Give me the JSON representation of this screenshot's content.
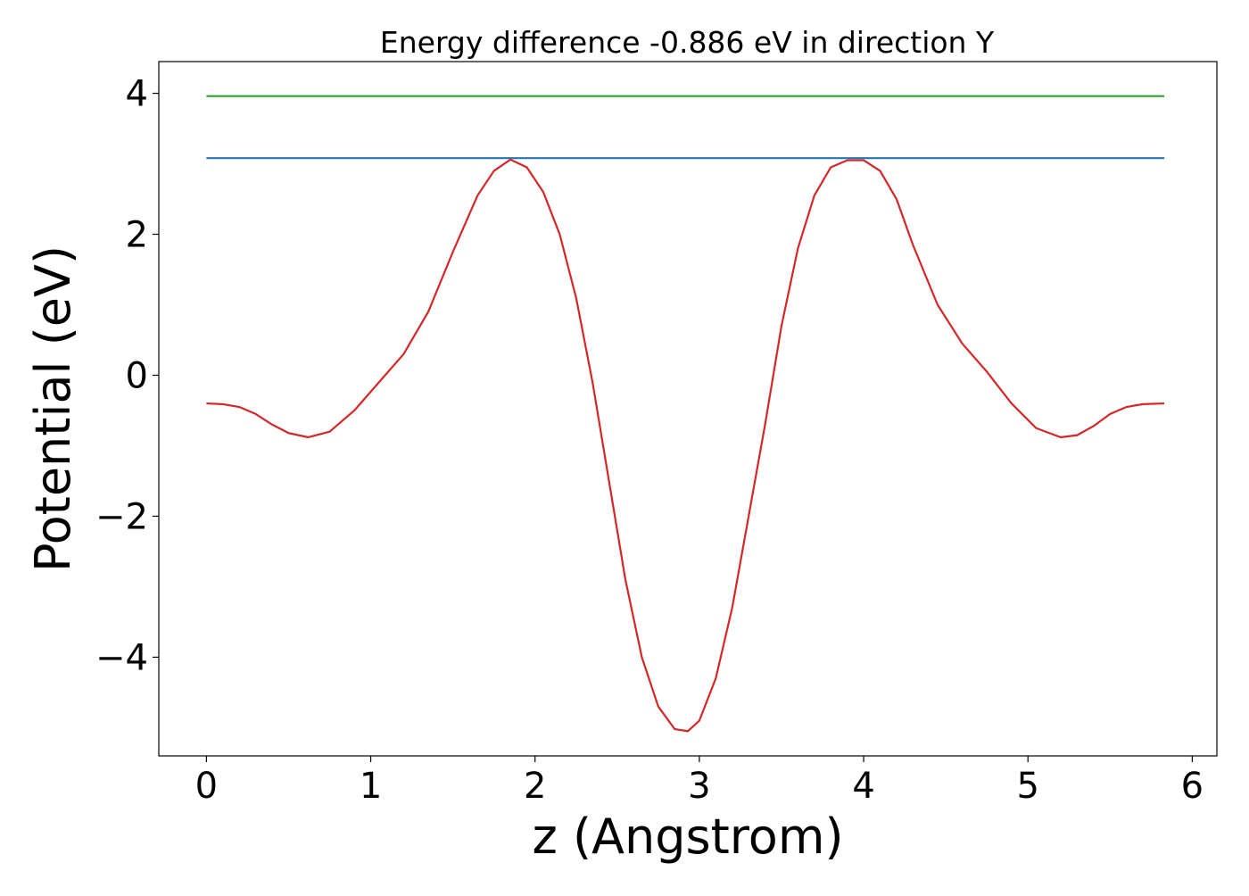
{
  "chart_data": {
    "type": "line",
    "title": "Energy difference -0.886 eV in direction Y",
    "xlabel": "z (Angstrom)",
    "ylabel": "Potential (eV)",
    "xlim": [
      -0.29,
      6.15
    ],
    "ylim": [
      -5.4,
      4.45
    ],
    "xticks": [
      0,
      1,
      2,
      3,
      4,
      5,
      6
    ],
    "xtick_labels": [
      "0",
      "1",
      "2",
      "3",
      "4",
      "5",
      "6"
    ],
    "yticks": [
      -4,
      -2,
      0,
      2,
      4
    ],
    "ytick_labels": [
      "−4",
      "−2",
      "0",
      "2",
      "4"
    ],
    "grid": false,
    "series": [
      {
        "color": "#2ca02c",
        "x": [
          0,
          5.83
        ],
        "y": [
          3.96,
          3.96
        ]
      },
      {
        "color": "#1f77b4",
        "x": [
          0,
          5.83
        ],
        "y": [
          3.08,
          3.08
        ]
      },
      {
        "color": "#d62728",
        "x": [
          0,
          0.1,
          0.2,
          0.3,
          0.4,
          0.5,
          0.62,
          0.75,
          0.9,
          1.05,
          1.2,
          1.35,
          1.5,
          1.65,
          1.75,
          1.85,
          1.95,
          2.05,
          2.15,
          2.25,
          2.35,
          2.45,
          2.55,
          2.65,
          2.75,
          2.85,
          2.93,
          3.0,
          3.1,
          3.2,
          3.3,
          3.4,
          3.5,
          3.6,
          3.7,
          3.8,
          3.9,
          4.0,
          4.1,
          4.2,
          4.3,
          4.45,
          4.6,
          4.75,
          4.9,
          5.05,
          5.2,
          5.3,
          5.4,
          5.5,
          5.6,
          5.7,
          5.83
        ],
        "y": [
          -0.4,
          -0.41,
          -0.45,
          -0.55,
          -0.7,
          -0.82,
          -0.88,
          -0.8,
          -0.5,
          -0.1,
          0.3,
          0.9,
          1.75,
          2.55,
          2.9,
          3.06,
          2.95,
          2.6,
          2.0,
          1.1,
          -0.1,
          -1.5,
          -2.9,
          -4.0,
          -4.7,
          -5.02,
          -5.05,
          -4.9,
          -4.3,
          -3.3,
          -2.0,
          -0.7,
          0.7,
          1.8,
          2.55,
          2.95,
          3.05,
          3.05,
          2.9,
          2.5,
          1.85,
          1.0,
          0.45,
          0.05,
          -0.4,
          -0.75,
          -0.88,
          -0.85,
          -0.72,
          -0.55,
          -0.45,
          -0.41,
          -0.4
        ]
      }
    ]
  }
}
